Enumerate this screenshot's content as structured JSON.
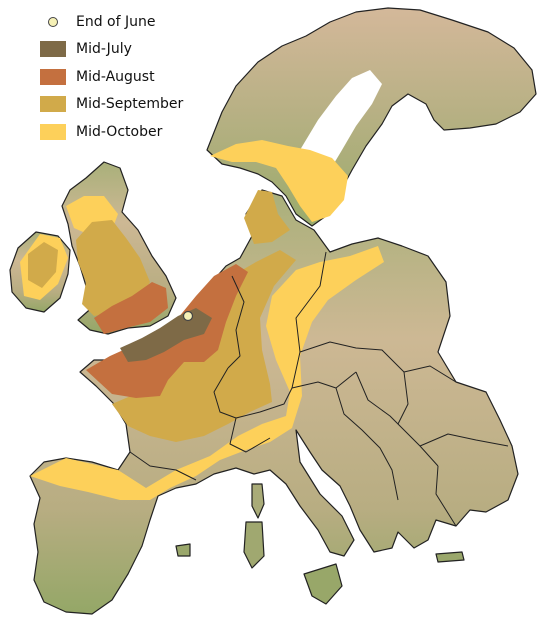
{
  "legend": {
    "items": [
      {
        "label": "End of June",
        "kind": "dot",
        "color": "#f6f1b6"
      },
      {
        "label": "Mid-July",
        "kind": "swatch",
        "color": "#7e6a47"
      },
      {
        "label": "Mid-August",
        "kind": "swatch",
        "color": "#c4703f"
      },
      {
        "label": "Mid-September",
        "kind": "swatch",
        "color": "#d1aa4a"
      },
      {
        "label": "Mid-October",
        "kind": "swatch",
        "color": "#fdd05a"
      }
    ]
  },
  "colors": {
    "land_north": "#d6bb9a",
    "land_south": "#9bab6c",
    "border": "#222222",
    "sea": "#ffffff"
  }
}
